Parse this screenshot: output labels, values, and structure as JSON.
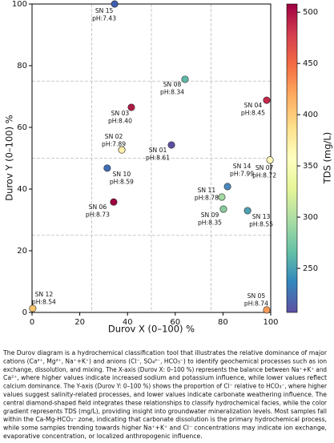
{
  "chart_data": {
    "type": "scatter",
    "xlabel": "Durov X (0–100) %",
    "ylabel": "Durov Y (0–100) %",
    "xlim": [
      0,
      100
    ],
    "ylim": [
      0,
      100
    ],
    "xticks": [
      0,
      20,
      40,
      60,
      80,
      100
    ],
    "yticks": [
      0,
      20,
      40,
      60,
      80,
      100
    ],
    "guide_lines": [
      25,
      50,
      75
    ],
    "colorbar": {
      "label": "TDS (mg/L)",
      "lim": [
        207,
        508
      ],
      "ticks": [
        250,
        300,
        350,
        400,
        450,
        500
      ]
    },
    "points": {
      "labels": [
        "SN 15",
        "SN 08",
        "SN 03",
        "SN 04",
        "SN 02",
        "SN 01",
        "SN 10",
        "SN 07",
        "SN 14",
        "SN 06",
        "SN 11",
        "SN 09",
        "SN 13",
        "SN 12",
        "SN 05"
      ],
      "ph_labels": [
        "pH:7.43",
        "pH:8.34",
        "pH:8.40",
        "pH:8.45",
        "pH:7.89",
        "pH:8.61",
        "pH:8.59",
        "pH:8.72",
        "pH:7.99",
        "pH:8.73",
        "pH:8.78",
        "pH:8.35",
        "pH:8.55",
        "pH:8.54",
        "pH:8.74"
      ],
      "x": [
        34.6,
        64.1,
        41.6,
        98.3,
        37.6,
        58.4,
        31.5,
        99.7,
        81.9,
        34.2,
        79.5,
        80.2,
        90.3,
        0.3,
        98.3
      ],
      "values": [
        100,
        75.6,
        66.5,
        68.8,
        52.7,
        54.3,
        46.8,
        49.4,
        40.8,
        35.8,
        37.4,
        33.5,
        33,
        1.3,
        0.8
      ],
      "tds": [
        225,
        275,
        490,
        480,
        350,
        215,
        235,
        345,
        240,
        500,
        300,
        290,
        255,
        390,
        420
      ],
      "colors": [
        "#3f5fae",
        "#5fb8a8",
        "#b01a45",
        "#c5284a",
        "#fef0a8",
        "#5b4fa0",
        "#3d6db3",
        "#fdf6b8",
        "#4a88bb",
        "#9e0142",
        "#a5d9a3",
        "#8ccc9e",
        "#4fa0b3",
        "#fbc56c",
        "#f99b56"
      ]
    }
  },
  "caption": {
    "lines": [
      "The Durov diagram is a hydrochemical classification tool that illustrates the relative dominance of major",
      "cations (Ca²⁺, Mg²⁺, Na⁺+K⁺) and anions (Cl⁻, SO₄²⁻, HCO₃⁻) to identify geochemical processes such as ion",
      "exchange, dissolution, and mixing. The X-axis (Durov X: 0–100 %) represents the balance between Na⁺+K⁺ and",
      "Ca²⁺, where higher values indicate increased sodium and potassium influence, while lower values reflect",
      "calcium dominance. The Y-axis (Durov Y: 0–100 %) shows the proportion of Cl⁻ relative to HCO₃⁻, where higher",
      "values suggest salinity-related processes, and lower values indicate carbonate weathering influence. The",
      "central diamond-shaped field integrates these relationships to classify hydrochemical facies, while the color",
      "gradient represents TDS (mg/L), providing insight into groundwater mineralization levels. Most samples fall",
      "within the Ca-Mg-HCO₃⁻ zone, indicating that carbonate dissolution is the primary hydrochemical process,",
      "while some samples trending towards higher Na⁺+K⁺ and Cl⁻ concentrations may indicate ion exchange,",
      "evaporative concentration, or localized anthropogenic influence."
    ]
  }
}
